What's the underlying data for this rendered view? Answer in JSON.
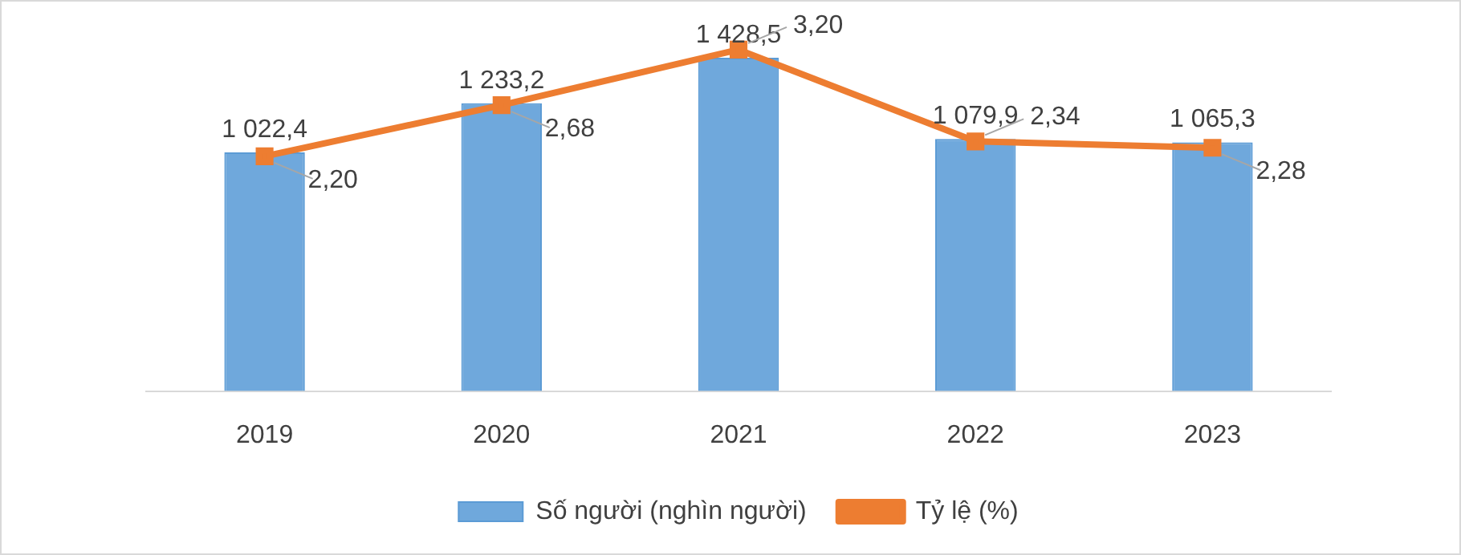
{
  "chart_data": {
    "type": "bar",
    "categories": [
      "2019",
      "2020",
      "2021",
      "2022",
      "2023"
    ],
    "series": [
      {
        "name": "Số người (nghìn người)",
        "color": "#6fa8dc",
        "values": [
          1022.4,
          1233.2,
          1428.5,
          1079.9,
          1065.3
        ],
        "value_labels": [
          "1 022,4",
          "1 233,2",
          "1 428,5",
          "1 079,9",
          "1 065,3"
        ]
      },
      {
        "name": "Tỷ lệ (%)",
        "type": "line",
        "axis": "y2",
        "color": "#ed7d31",
        "values": [
          2.2,
          2.68,
          3.2,
          2.34,
          2.28
        ],
        "value_labels": [
          "2,20",
          "2,68",
          "3,20",
          "2,34",
          "2,28"
        ]
      }
    ],
    "legend": "bottom",
    "tick_labels": "x",
    "marker": "square",
    "line_style": "solid"
  }
}
